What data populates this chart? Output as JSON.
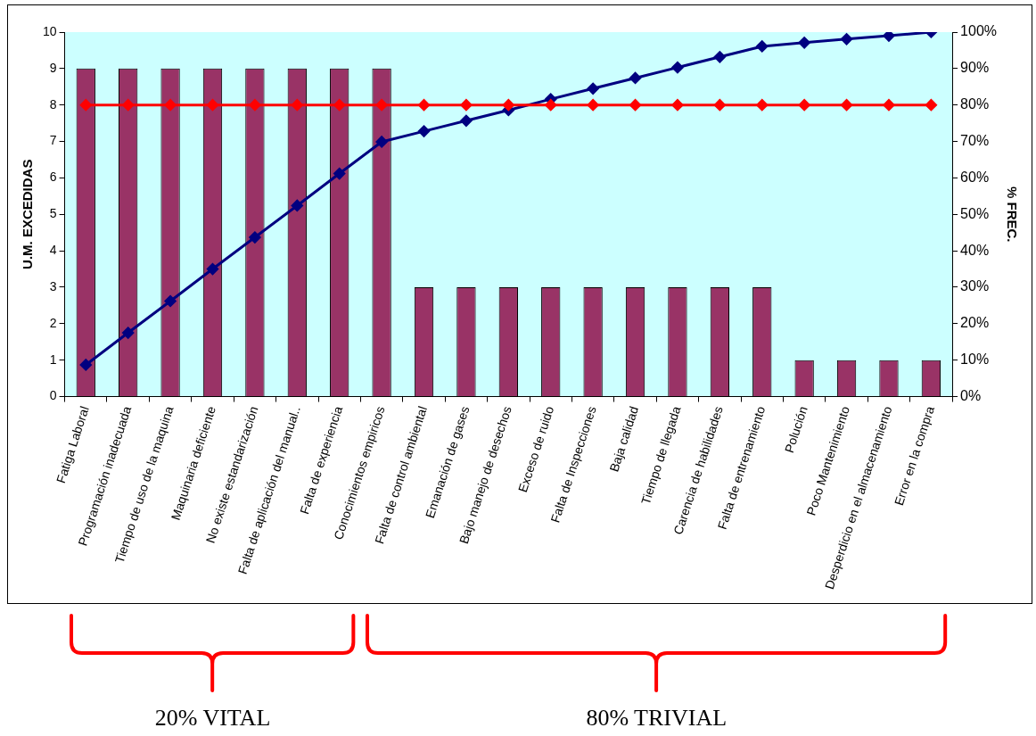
{
  "chart_data": {
    "type": "bar",
    "ylabel": "U.M. EXCEDIDAS",
    "y2label": "% FREC.",
    "categories": [
      "Fatiga Laboral",
      "Programación inadecuada",
      "Tiempo de uso de la maquina",
      "Maquinaria deficiente",
      "No existe estandarización",
      "Falta de aplicación del manual..",
      "Falta de experiencia",
      "Conocimientos empiricos",
      "Falta de control ambiental",
      "Emanación de gases",
      "Bajo manejo de desechos",
      "Exceso de ruido",
      "Falta de Inspecciones",
      "Baja calidad",
      "Tiempo de llegada",
      "Carencia de habilidades",
      "Falta de entrenamiento",
      "Polución",
      "Poco Mantenimiento",
      "Desperdicio en el almacenamiento",
      "Error en la compra"
    ],
    "series": [
      {
        "color": "#993366",
        "values": [
          9,
          9,
          9,
          9,
          9,
          9,
          9,
          9,
          3,
          3,
          3,
          3,
          3,
          3,
          3,
          3,
          3,
          1,
          1,
          1,
          1
        ]
      },
      {
        "type": "line",
        "axis": "y2",
        "color": "#ff0000",
        "values": [
          80,
          80,
          80,
          80,
          80,
          80,
          80,
          80,
          80,
          80,
          80,
          80,
          80,
          80,
          80,
          80,
          80,
          80,
          80,
          80,
          80
        ]
      },
      {
        "type": "line",
        "axis": "y2",
        "color": "#000080",
        "values": [
          8.7,
          17.5,
          26.2,
          35.0,
          43.7,
          52.4,
          61.2,
          69.9,
          72.8,
          75.7,
          78.6,
          81.6,
          84.5,
          87.4,
          90.3,
          93.2,
          96.1,
          97.1,
          98.1,
          99.0,
          100
        ]
      }
    ],
    "ylim": [
      0,
      10
    ],
    "yticks": [
      0,
      1,
      2,
      3,
      4,
      5,
      6,
      7,
      8,
      9,
      10
    ],
    "y2lim": [
      0,
      100
    ],
    "y2ticks": [
      {
        "value": 0,
        "label": "0%"
      },
      {
        "value": 10,
        "label": "10%"
      },
      {
        "value": 20,
        "label": "20%"
      },
      {
        "value": 30,
        "label": "30%"
      },
      {
        "value": 40,
        "label": "40%"
      },
      {
        "value": 50,
        "label": "50%"
      },
      {
        "value": 60,
        "label": "60%"
      },
      {
        "value": 70,
        "label": "70%"
      },
      {
        "value": 80,
        "label": "80%"
      },
      {
        "value": 90,
        "label": "90%"
      },
      {
        "value": 100,
        "label": "100%"
      }
    ],
    "grid": false,
    "legend": false,
    "marker": "diamond",
    "line_style": "solid",
    "annotations": [
      "20% VITAL",
      "80% TRIVIAL"
    ]
  }
}
